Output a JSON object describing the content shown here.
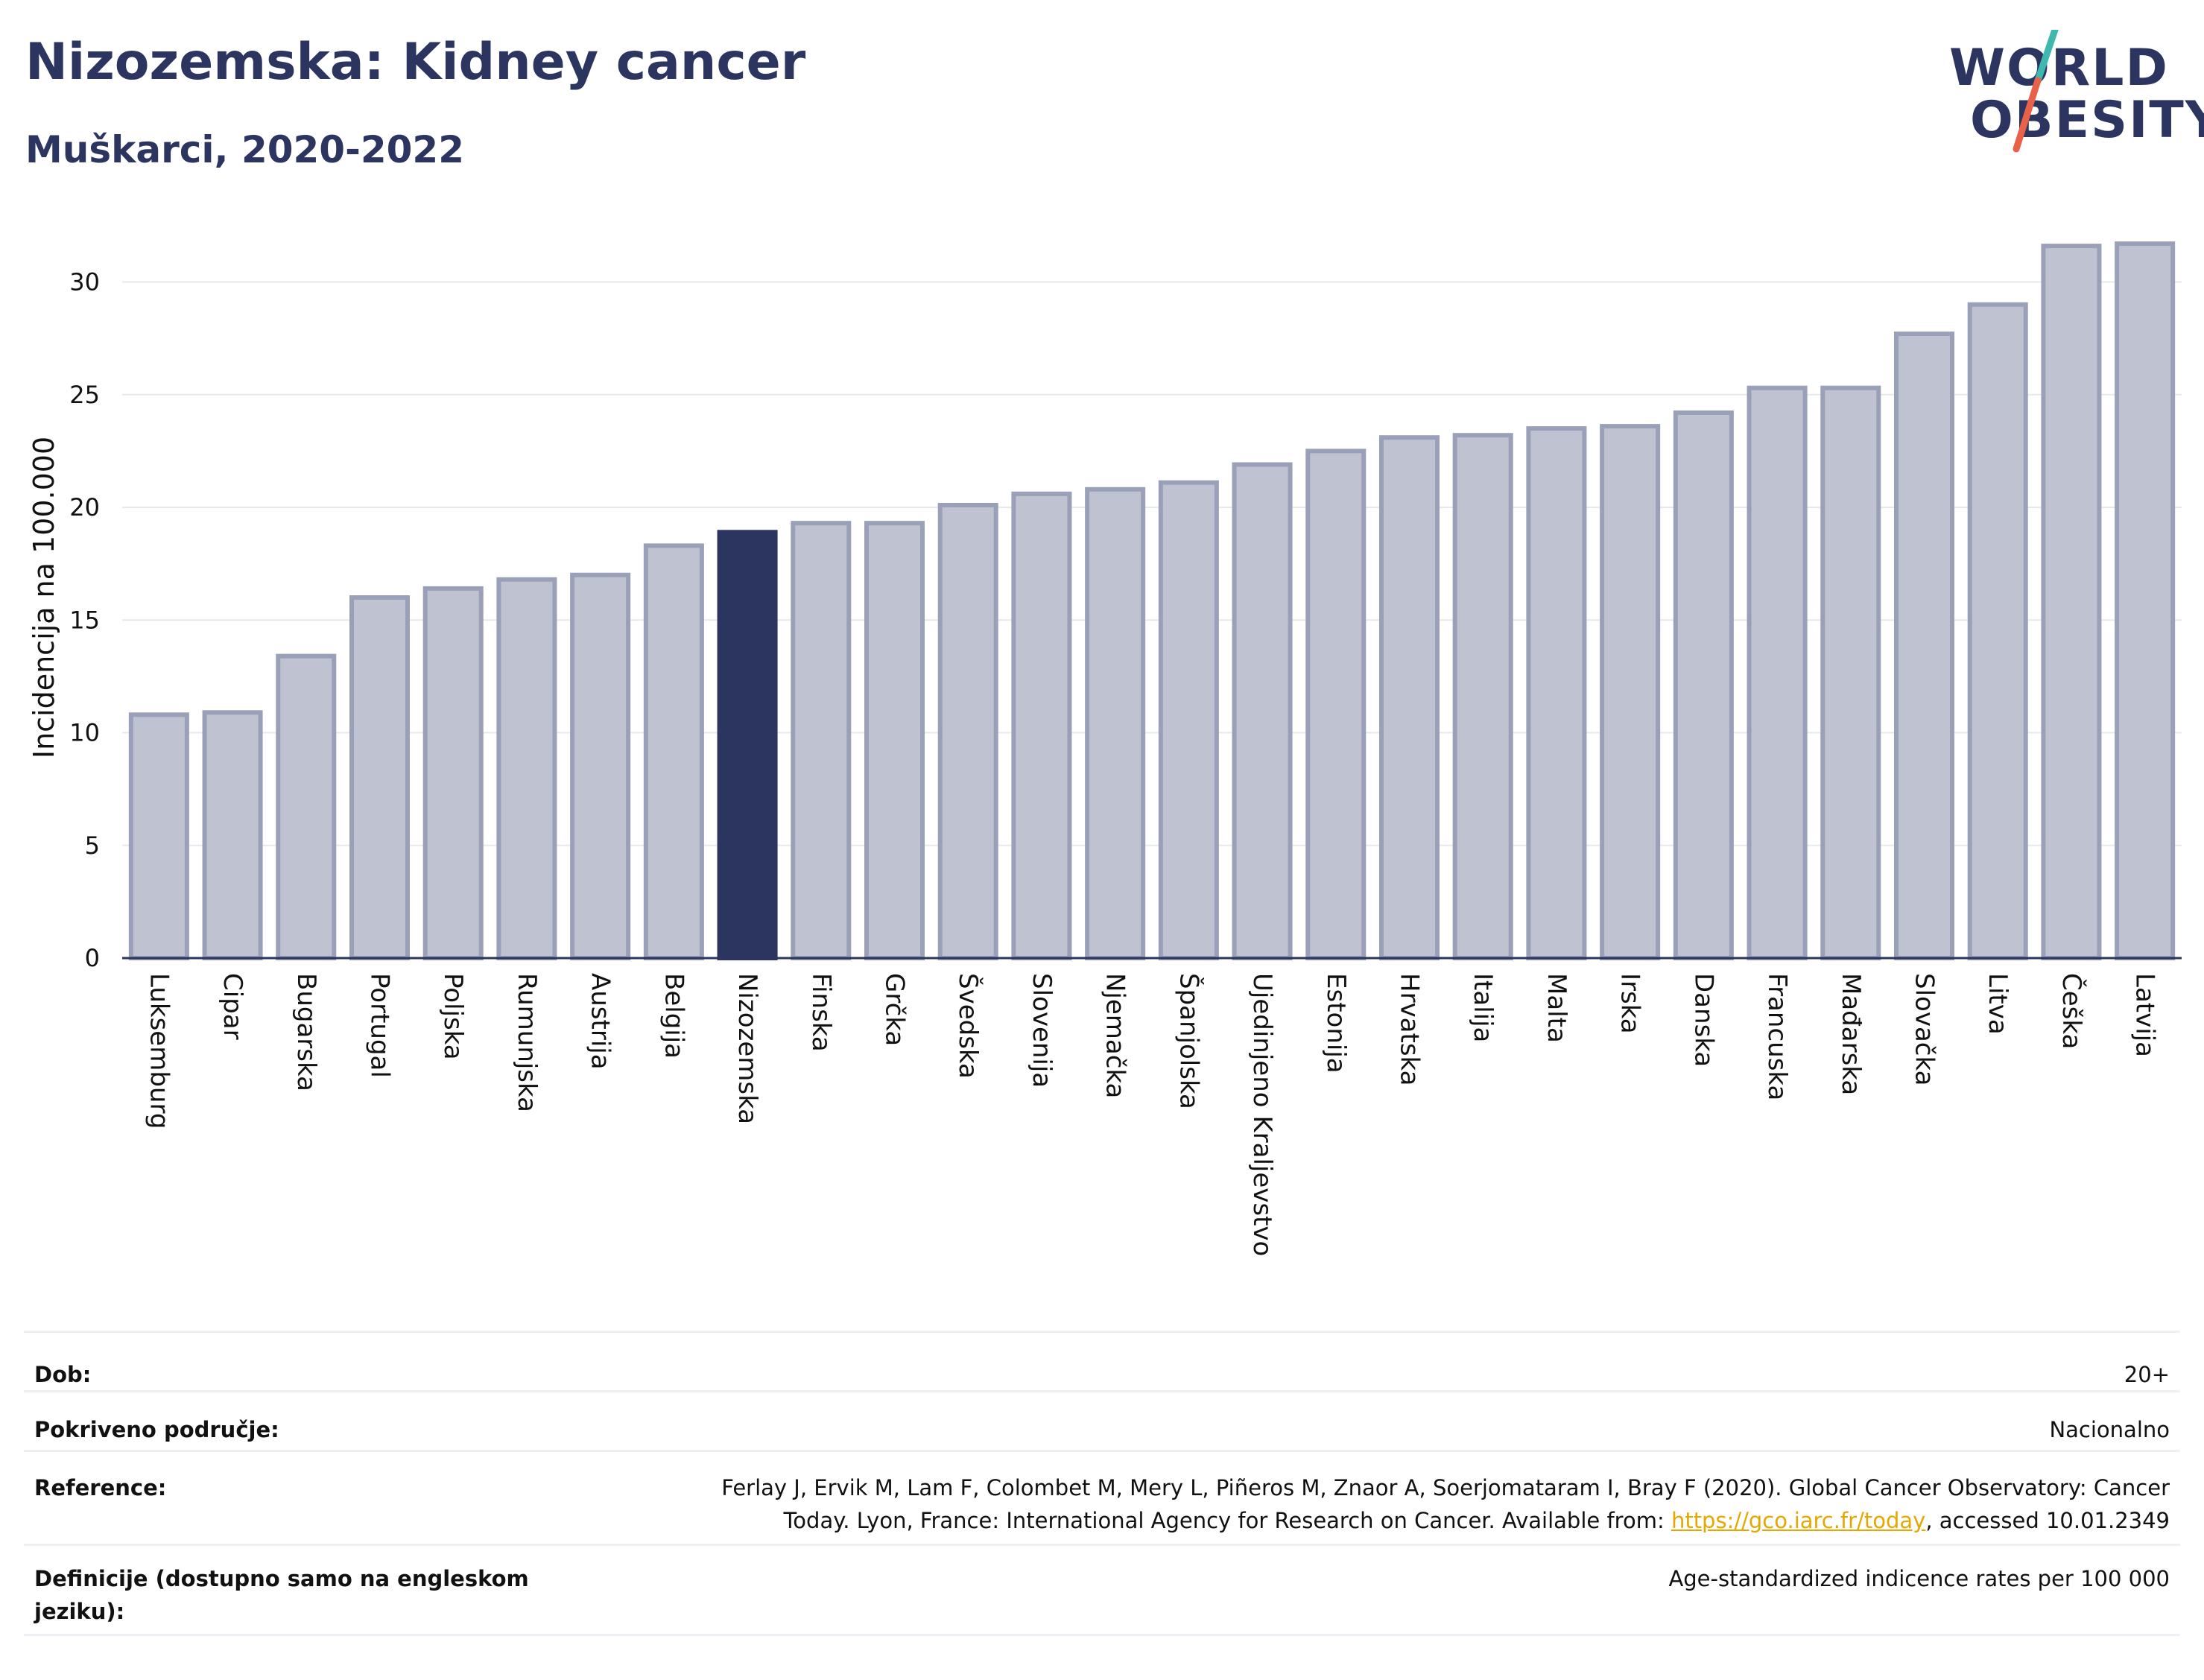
{
  "header": {
    "title": "Nizozemska: Kidney cancer",
    "subtitle": "Muškarci, 2020-2022"
  },
  "logo": {
    "line1": "WORLD",
    "line2": "OBESITY",
    "slash_colors": [
      "#3fb8b0",
      "#e8624a"
    ]
  },
  "colors": {
    "highlight": "#2b3560",
    "bar_fill": "#bfc3d1",
    "bar_stroke": "#9aa0b8",
    "grid": "#e6e8ee",
    "text": "#111111"
  },
  "chart_data": {
    "type": "bar",
    "ylabel": "Incidencija na 100.000",
    "xlabel": "",
    "ylim": [
      0,
      32
    ],
    "yticks": [
      0,
      5,
      10,
      15,
      20,
      25,
      30
    ],
    "grid": true,
    "highlight_category": "Nizozemska",
    "categories": [
      "Luksemburg",
      "Cipar",
      "Bugarska",
      "Portugal",
      "Poljska",
      "Rumunjska",
      "Austrija",
      "Belgija",
      "Nizozemska",
      "Finska",
      "Grčka",
      "Švedska",
      "Slovenija",
      "Njemačka",
      "Španjolska",
      "Ujedinjeno Kraljevstvo",
      "Estonija",
      "Hrvatska",
      "Italija",
      "Malta",
      "Irska",
      "Danska",
      "Francuska",
      "Mađarska",
      "Slovačka",
      "Litva",
      "Češka",
      "Latvija"
    ],
    "values": [
      10.8,
      10.9,
      13.4,
      16.0,
      16.4,
      16.8,
      17.0,
      18.3,
      18.9,
      19.3,
      19.3,
      20.1,
      20.6,
      20.8,
      21.1,
      21.9,
      22.5,
      23.1,
      23.2,
      23.5,
      23.6,
      24.2,
      25.3,
      25.3,
      27.7,
      29.0,
      31.6,
      31.7
    ]
  },
  "info": {
    "age_label": "Dob:",
    "age_value": "20+",
    "coverage_label": "Pokriveno područje:",
    "coverage_value": "Nacionalno",
    "reference_label": "Reference:",
    "reference_text_1": "Ferlay J, Ervik M, Lam F, Colombet M, Mery L, Piñeros M, Znaor A, Soerjomataram I, Bray F (2020). Global Cancer Observatory: Cancer",
    "reference_text_2": "Today. Lyon, France: International Agency for Research on Cancer. Available from: ",
    "reference_link": "https://gco.iarc.fr/today",
    "reference_text_3": ", accessed 10.01.2349",
    "definitions_label": "Definicije (dostupno samo na engleskom jeziku):",
    "definitions_value": "Age-standardized indicence rates per 100 000"
  }
}
